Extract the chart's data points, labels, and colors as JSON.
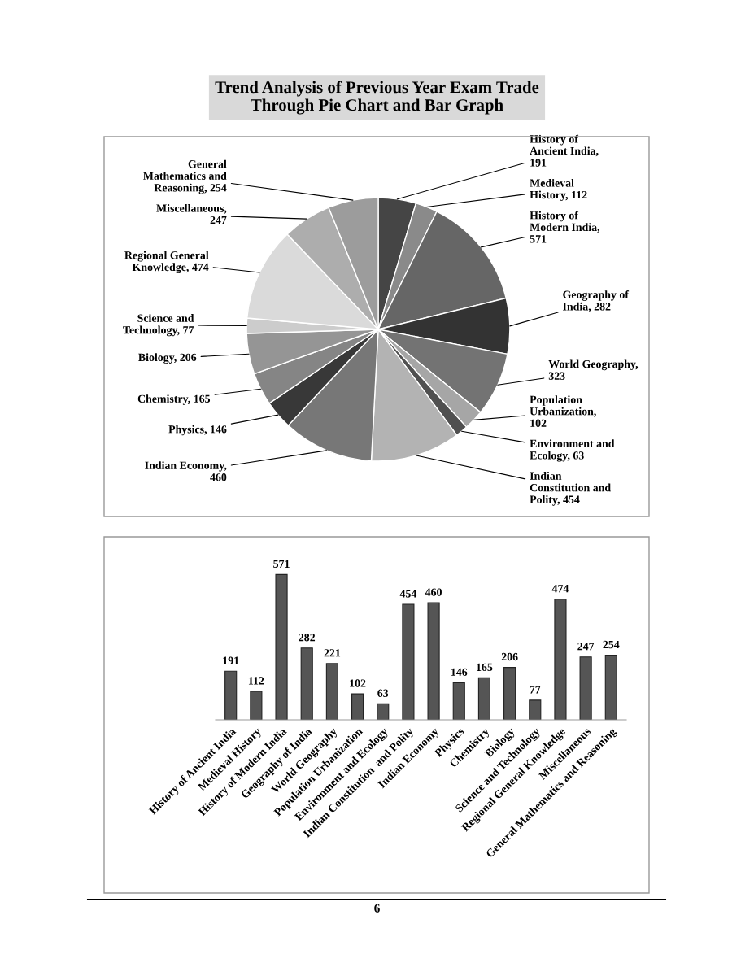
{
  "chart_data": [
    {
      "type": "pie",
      "title": "Trend Analysis of Previous Year Exam Trade Through Pie Chart and Bar Graph",
      "categories": [
        "History of Ancient India, 191",
        "Medieval History, 112",
        "History of Modern India, 571",
        "Geography of India, 282",
        "World Geography, 323",
        "Population Urbanization, 102",
        "Environment and Ecology, 63",
        "Indian Constitution and Polity, 454",
        "Indian Economy, 460",
        "Physics, 146",
        "Chemistry, 165",
        "Biology, 206",
        "Science and Technology, 77",
        "Regional General Knowledge, 474",
        "Miscellaneous, 247",
        "General Mathematics and Reasoning, 254"
      ],
      "values": [
        191,
        112,
        571,
        282,
        323,
        102,
        63,
        454,
        460,
        146,
        165,
        206,
        77,
        474,
        247,
        254
      ],
      "colors": [
        "#454545",
        "#8a8a8a",
        "#666666",
        "#333333",
        "#737373",
        "#a6a6a6",
        "#505050",
        "#b3b3b3",
        "#777777",
        "#383838",
        "#858585",
        "#959595",
        "#cccccc",
        "#dadada",
        "#adadad",
        "#9c9c9c"
      ]
    },
    {
      "type": "bar",
      "categories": [
        "History of Ancient India",
        "Medieval History",
        "History of Modern India",
        "Geography of India",
        "World Geography",
        "Population Urbanization",
        "Environment and Ecology",
        "Indian Constitution  and Polity",
        "Indian Economy",
        "Physics",
        "Chemistry",
        "Biology",
        "Science and Technology",
        "Regional General Knowledge",
        "Miscellaneous",
        "General Mathematics and Reasoning"
      ],
      "values": [
        191,
        112,
        571,
        282,
        221,
        102,
        63,
        454,
        460,
        146,
        165,
        206,
        77,
        474,
        247,
        254
      ],
      "color": "#555555",
      "data_labels": true,
      "tick_labels": "x",
      "annotations": [
        "6"
      ]
    }
  ]
}
